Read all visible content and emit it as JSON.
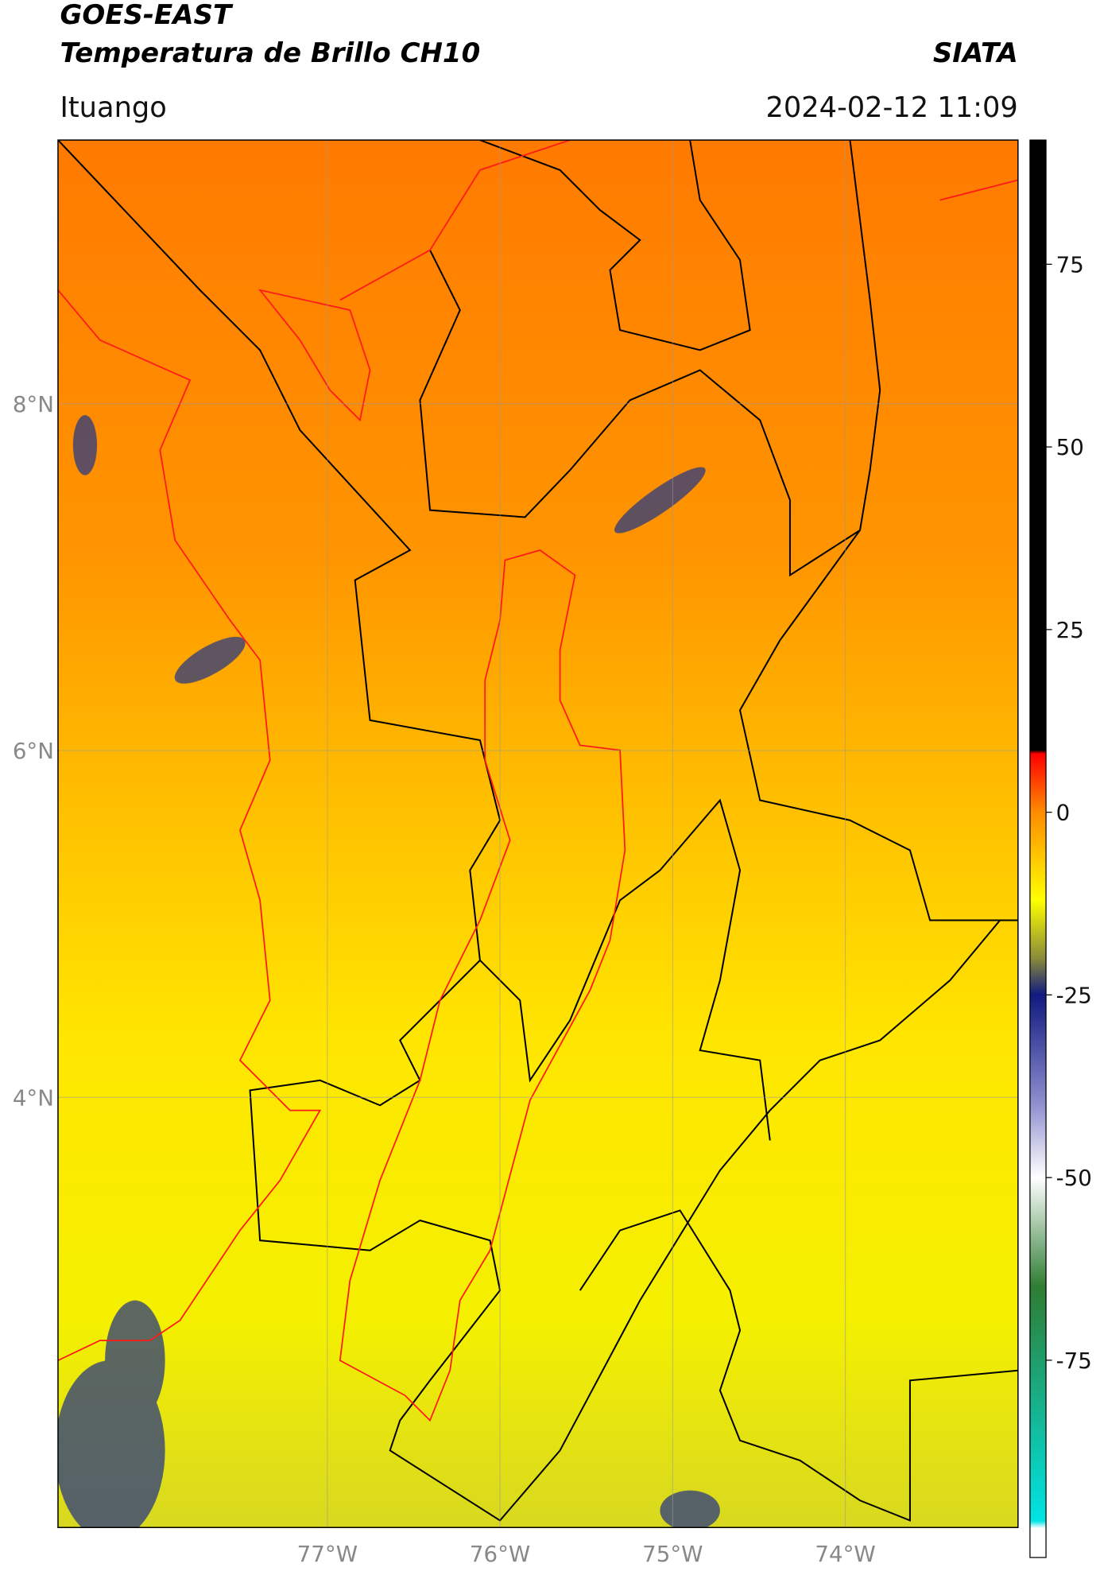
{
  "header": {
    "title": "GOES-EAST",
    "subtitle": "Temperatura de Brillo CH10",
    "source": "SIATA",
    "location": "Ituango",
    "datetime": "2024-02-12 11:09"
  },
  "map": {
    "lonlim": [
      -78.56,
      -73.0
    ],
    "latlim": [
      1.52,
      9.52
    ],
    "grid": true,
    "lat_ticks": [
      {
        "value": 8,
        "label": "8°N"
      },
      {
        "value": 6,
        "label": "6°N"
      },
      {
        "value": 4,
        "label": "4°N"
      }
    ],
    "lon_ticks": [
      {
        "value": -77,
        "label": "77°W"
      },
      {
        "value": -76,
        "label": "76°W"
      },
      {
        "value": -75,
        "label": "75°W"
      },
      {
        "value": -74,
        "label": "74°W"
      }
    ]
  },
  "colorbar": {
    "lim": [
      -102,
      92
    ],
    "ticks": [
      75,
      50,
      25,
      0,
      -25,
      -50,
      -75
    ],
    "colors": [
      {
        "value": 92,
        "color": "#000000"
      },
      {
        "value": 8.5,
        "color": "#000000"
      },
      {
        "value": 8,
        "color": "#ff0000"
      },
      {
        "value": 0,
        "color": "#ff8c00"
      },
      {
        "value": -12,
        "color": "#ffff00"
      },
      {
        "value": -20,
        "color": "#8a8a3a"
      },
      {
        "value": -25,
        "color": "#101a80"
      },
      {
        "value": -40,
        "color": "#9090d0"
      },
      {
        "value": -50,
        "color": "#ffffff"
      },
      {
        "value": -65,
        "color": "#2e7d32"
      },
      {
        "value": -97,
        "color": "#00e5e5"
      },
      {
        "value": -98,
        "color": "#ffffff"
      },
      {
        "value": -102,
        "color": "#ffffff"
      }
    ]
  }
}
